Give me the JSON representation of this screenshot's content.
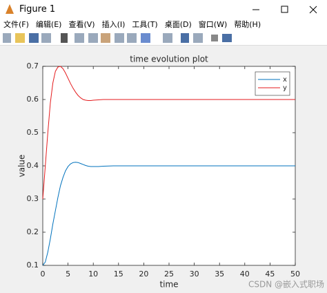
{
  "window": {
    "title": "Figure 1",
    "menu": [
      "文件(F)",
      "编辑(E)",
      "查看(V)",
      "插入(I)",
      "工具(T)",
      "桌面(D)",
      "窗口(W)",
      "帮助(H)"
    ],
    "watermark": "CSDN @嵌入式职场"
  },
  "chart_data": {
    "type": "line",
    "title": "time evolution plot",
    "x_label": "time",
    "y_label": "value",
    "x": [
      0,
      0.5,
      1,
      1.5,
      2,
      2.5,
      3,
      3.5,
      4,
      4.5,
      5,
      5.5,
      6,
      6.5,
      7,
      7.5,
      8,
      8.5,
      9,
      9.5,
      10,
      11,
      12,
      14,
      16,
      20,
      25,
      30,
      40,
      50
    ],
    "series": [
      {
        "name": "x",
        "color": "#0072bd",
        "values": [
          0.1,
          0.11,
          0.14,
          0.18,
          0.225,
          0.265,
          0.305,
          0.34,
          0.365,
          0.385,
          0.398,
          0.406,
          0.41,
          0.411,
          0.41,
          0.407,
          0.404,
          0.401,
          0.399,
          0.398,
          0.398,
          0.398,
          0.399,
          0.4,
          0.4,
          0.4,
          0.4,
          0.4,
          0.4,
          0.4
        ]
      },
      {
        "name": "y",
        "color": "#e41a1c",
        "values": [
          0.3,
          0.4,
          0.5,
          0.59,
          0.65,
          0.685,
          0.698,
          0.7,
          0.693,
          0.68,
          0.664,
          0.648,
          0.634,
          0.622,
          0.612,
          0.605,
          0.6,
          0.598,
          0.597,
          0.597,
          0.598,
          0.599,
          0.6,
          0.6,
          0.6,
          0.6,
          0.6,
          0.6,
          0.6,
          0.6
        ]
      }
    ],
    "xlim": [
      0,
      50
    ],
    "ylim": [
      0.1,
      0.7
    ],
    "xticks": [
      0,
      5,
      10,
      15,
      20,
      25,
      30,
      35,
      40,
      45,
      50
    ],
    "yticks": [
      0.1,
      0.2,
      0.3,
      0.4,
      0.5,
      0.6,
      0.7
    ],
    "grid": false,
    "legend": "northeast"
  }
}
